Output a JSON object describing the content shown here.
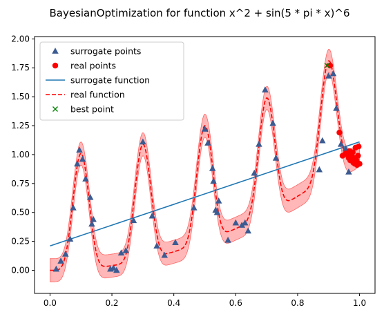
{
  "chart_data": {
    "type": "scatter",
    "title": "BayesianOptimization for function x^2 + sin(5 * pi * x)^6",
    "xlabel": "",
    "ylabel": "",
    "xlim": [
      -0.05,
      1.05
    ],
    "ylim": [
      -0.2,
      2.02
    ],
    "x_ticks": [
      "0.0",
      "0.2",
      "0.4",
      "0.6",
      "0.8",
      "1.0"
    ],
    "y_ticks": [
      "0.00",
      "0.25",
      "0.50",
      "0.75",
      "1.00",
      "1.25",
      "1.50",
      "1.75",
      "2.00"
    ],
    "legend": {
      "placement": "top-left",
      "entries": [
        {
          "label": "surrogate points",
          "marker": "triangle",
          "color": "#1f4e79"
        },
        {
          "label": "real points",
          "marker": "circle",
          "color": "#ff0000"
        },
        {
          "label": "surrogate function",
          "marker": "line",
          "color": "#1f77b4"
        },
        {
          "label": "real function",
          "marker": "dashed-line",
          "color": "#ff0000"
        },
        {
          "label": "best point",
          "marker": "x",
          "color": "#008000"
        }
      ]
    },
    "colors": {
      "surrogate_points": "#3b5b92",
      "real_points": "#ff0000",
      "surrogate_function": "#1f77b4",
      "real_function": "#ff0000",
      "uncertainty_band": "#ff9999",
      "best_point": "#008000"
    },
    "surrogate_function": {
      "x": [
        0.0,
        1.0
      ],
      "y": [
        0.21,
        1.11
      ]
    },
    "real_function": {
      "x_start": 0.0,
      "x_end": 1.0,
      "samples": 300
    },
    "uncertainty_band_halfwidth": 0.1,
    "surrogate_points": {
      "x": [
        0.02,
        0.035,
        0.05,
        0.065,
        0.075,
        0.088,
        0.095,
        0.105,
        0.115,
        0.13,
        0.135,
        0.14,
        0.195,
        0.205,
        0.215,
        0.23,
        0.245,
        0.27,
        0.3,
        0.33,
        0.345,
        0.37,
        0.405,
        0.465,
        0.5,
        0.51,
        0.525,
        0.528,
        0.535,
        0.54,
        0.545,
        0.575,
        0.6,
        0.62,
        0.63,
        0.64,
        0.66,
        0.675,
        0.695,
        0.72,
        0.73,
        0.87,
        0.88,
        0.9,
        0.915,
        0.925,
        0.94,
        0.955,
        0.965
      ],
      "y": [
        0.01,
        0.08,
        0.14,
        0.27,
        0.54,
        0.92,
        1.04,
        0.96,
        0.79,
        0.63,
        0.4,
        0.44,
        0.01,
        0.02,
        0.0,
        0.15,
        0.17,
        0.43,
        1.11,
        0.47,
        0.21,
        0.13,
        0.24,
        0.54,
        1.22,
        1.1,
        0.88,
        0.77,
        0.52,
        0.5,
        0.6,
        0.26,
        0.41,
        0.39,
        0.41,
        0.34,
        0.84,
        1.09,
        1.56,
        1.27,
        0.97,
        0.87,
        1.12,
        1.68,
        1.7,
        1.4,
        1.09,
        1.05,
        0.85
      ]
    },
    "real_points": {
      "x": [
        0.905,
        0.935,
        0.945,
        0.955,
        0.96,
        0.965,
        0.968,
        0.97,
        0.975,
        0.978,
        0.98,
        0.982,
        0.985,
        0.987,
        0.99,
        0.992,
        0.995,
        0.997,
        1.0
      ],
      "y": [
        1.77,
        1.19,
        0.99,
        1.01,
        1.0,
        0.97,
        1.03,
        0.95,
        0.99,
        1.02,
        0.93,
        0.97,
        0.92,
        1.06,
        0.95,
        0.91,
        0.99,
        1.07,
        0.92
      ]
    },
    "best_point": {
      "x": 0.895,
      "y": 1.77
    }
  }
}
